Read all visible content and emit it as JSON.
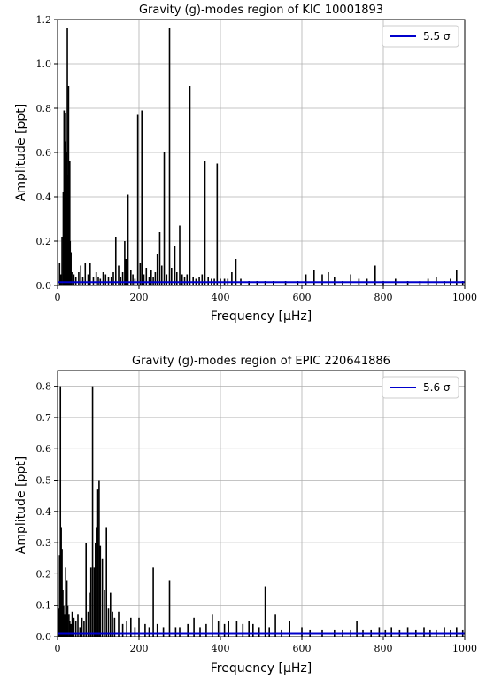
{
  "chart_data": [
    {
      "type": "line",
      "title": "Gravity (g)-modes region of KIC 10001893",
      "xlabel": "Frequency [μHz]",
      "ylabel": "Amplitude [ppt]",
      "xlim": [
        0,
        1000
      ],
      "ylim": [
        0,
        1.2
      ],
      "xticks": [
        "0",
        "200",
        "400",
        "600",
        "800",
        "1000"
      ],
      "yticks": [
        "0.0",
        "0.2",
        "0.4",
        "0.6",
        "0.8",
        "1.0",
        "1.2"
      ],
      "grid": true,
      "legend_position": "top-right",
      "series": [
        {
          "name": "",
          "color": "#000000",
          "x": [
            5,
            8,
            11,
            14,
            16,
            18,
            20,
            22,
            24,
            25,
            27,
            28,
            30,
            31,
            33,
            35,
            40,
            45,
            52,
            57,
            62,
            68,
            75,
            80,
            88,
            95,
            100,
            105,
            112,
            118,
            125,
            132,
            137,
            143,
            150,
            155,
            160,
            165,
            168,
            173,
            180,
            185,
            190,
            197,
            203,
            207,
            212,
            218,
            225,
            230,
            235,
            240,
            245,
            251,
            256,
            262,
            268,
            275,
            280,
            288,
            293,
            300,
            306,
            312,
            318,
            325,
            333,
            340,
            348,
            355,
            362,
            370,
            378,
            385,
            392,
            400,
            410,
            418,
            428,
            438,
            450,
            470,
            490,
            510,
            530,
            560,
            590,
            610,
            630,
            650,
            665,
            680,
            700,
            720,
            740,
            760,
            780,
            800,
            830,
            860,
            890,
            910,
            930,
            950,
            965,
            980,
            995
          ],
          "y": [
            0.1,
            0.05,
            0.22,
            0.42,
            0.79,
            0.65,
            0.78,
            0.6,
            1.16,
            0.5,
            0.9,
            0.4,
            0.56,
            0.2,
            0.15,
            0.06,
            0.05,
            0.04,
            0.06,
            0.09,
            0.04,
            0.1,
            0.05,
            0.1,
            0.04,
            0.06,
            0.04,
            0.03,
            0.06,
            0.05,
            0.04,
            0.04,
            0.06,
            0.22,
            0.09,
            0.04,
            0.06,
            0.2,
            0.12,
            0.41,
            0.07,
            0.05,
            0.03,
            0.77,
            0.1,
            0.79,
            0.05,
            0.08,
            0.04,
            0.07,
            0.04,
            0.06,
            0.14,
            0.24,
            0.09,
            0.6,
            0.05,
            1.16,
            0.08,
            0.18,
            0.06,
            0.27,
            0.05,
            0.04,
            0.05,
            0.9,
            0.04,
            0.03,
            0.04,
            0.05,
            0.56,
            0.04,
            0.03,
            0.03,
            0.55,
            0.03,
            0.03,
            0.03,
            0.06,
            0.12,
            0.03,
            0.02,
            0.02,
            0.02,
            0.02,
            0.02,
            0.02,
            0.05,
            0.07,
            0.05,
            0.06,
            0.04,
            0.02,
            0.05,
            0.03,
            0.03,
            0.09,
            0.02,
            0.03,
            0.02,
            0.02,
            0.03,
            0.04,
            0.02,
            0.03,
            0.07,
            0.02
          ]
        },
        {
          "name": "5.5 σ",
          "color": "#0000cc",
          "x": [
            0,
            1000
          ],
          "y": [
            0.015,
            0.015
          ]
        }
      ]
    },
    {
      "type": "line",
      "title": "Gravity (g)-modes region of EPIC 220641886",
      "xlabel": "Frequency [μHz]",
      "ylabel": "Amplitude [ppt]",
      "xlim": [
        0,
        1000
      ],
      "ylim": [
        0,
        0.85
      ],
      "xticks": [
        "0",
        "200",
        "400",
        "600",
        "800",
        "1000"
      ],
      "yticks": [
        "0.0",
        "0.1",
        "0.2",
        "0.3",
        "0.4",
        "0.5",
        "0.6",
        "0.7",
        "0.8"
      ],
      "grid": true,
      "legend_position": "top-right",
      "series": [
        {
          "name": "",
          "color": "#000000",
          "x": [
            3,
            5,
            7,
            9,
            11,
            13,
            15,
            17,
            20,
            23,
            25,
            28,
            30,
            33,
            36,
            40,
            45,
            50,
            55,
            60,
            65,
            70,
            75,
            78,
            82,
            86,
            90,
            93,
            96,
            99,
            102,
            105,
            110,
            115,
            120,
            125,
            130,
            135,
            140,
            150,
            160,
            170,
            180,
            190,
            200,
            215,
            225,
            235,
            245,
            260,
            275,
            290,
            300,
            320,
            335,
            350,
            365,
            380,
            395,
            410,
            420,
            440,
            455,
            470,
            480,
            495,
            510,
            520,
            535,
            550,
            570,
            600,
            620,
            650,
            680,
            700,
            720,
            735,
            750,
            770,
            790,
            805,
            820,
            840,
            860,
            880,
            900,
            915,
            930,
            950,
            965,
            980,
            995
          ],
          "y": [
            0.09,
            0.26,
            0.8,
            0.35,
            0.28,
            0.15,
            0.1,
            0.07,
            0.22,
            0.18,
            0.1,
            0.07,
            0.05,
            0.04,
            0.08,
            0.06,
            0.05,
            0.07,
            0.03,
            0.06,
            0.05,
            0.3,
            0.08,
            0.14,
            0.22,
            0.8,
            0.22,
            0.3,
            0.35,
            0.47,
            0.5,
            0.29,
            0.25,
            0.15,
            0.35,
            0.09,
            0.14,
            0.08,
            0.06,
            0.08,
            0.04,
            0.05,
            0.06,
            0.03,
            0.06,
            0.04,
            0.03,
            0.22,
            0.04,
            0.03,
            0.18,
            0.03,
            0.03,
            0.04,
            0.06,
            0.03,
            0.04,
            0.07,
            0.05,
            0.04,
            0.05,
            0.05,
            0.04,
            0.05,
            0.04,
            0.03,
            0.16,
            0.03,
            0.07,
            0.02,
            0.05,
            0.03,
            0.02,
            0.02,
            0.02,
            0.02,
            0.02,
            0.05,
            0.02,
            0.02,
            0.03,
            0.02,
            0.03,
            0.02,
            0.03,
            0.02,
            0.03,
            0.02,
            0.02,
            0.03,
            0.02,
            0.03,
            0.02
          ]
        },
        {
          "name": "5.6 σ",
          "color": "#0000cc",
          "x": [
            0,
            1000
          ],
          "y": [
            0.01,
            0.01
          ]
        }
      ]
    }
  ]
}
